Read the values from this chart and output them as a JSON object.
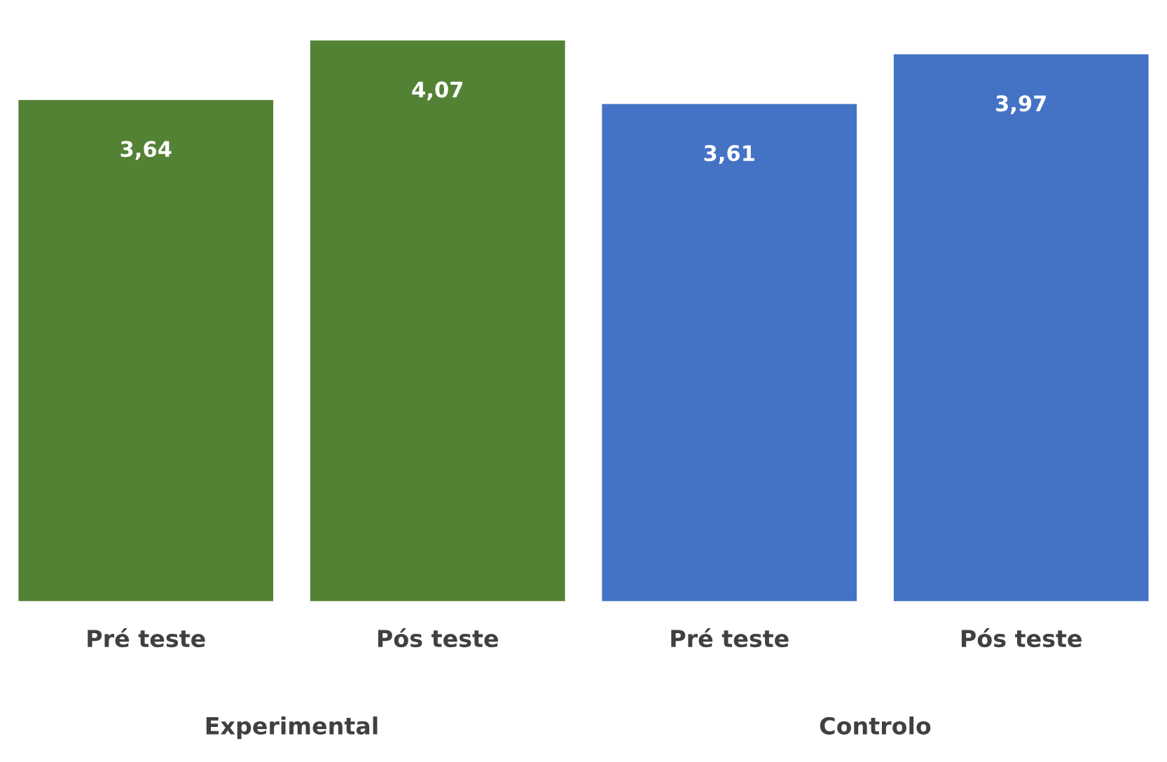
{
  "chart_data": {
    "type": "bar",
    "categories": [
      "Pré teste",
      "Pós teste",
      "Pré teste",
      "Pós teste"
    ],
    "values": [
      3.64,
      4.07,
      3.61,
      3.97
    ],
    "value_labels": [
      "3,64",
      "4,07",
      "3,61",
      "3,97"
    ],
    "colors": [
      "#548235",
      "#548235",
      "#4472c4",
      "#4472c4"
    ],
    "annotations": [
      "Experimental",
      "Controlo"
    ],
    "grid": false,
    "legend": false
  }
}
